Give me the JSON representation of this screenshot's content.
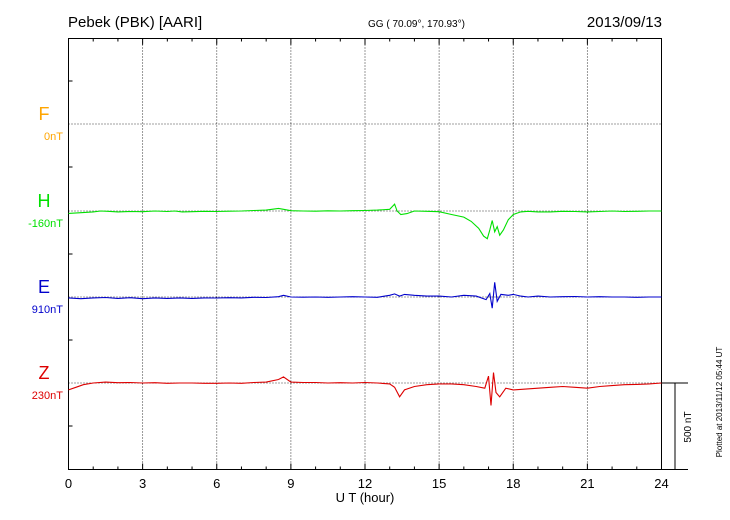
{
  "header": {
    "station": "Pebek (PBK)  [AARI]",
    "coords": "GG ( 70.09°, 170.93°)",
    "date": "2013/09/13"
  },
  "footer": {
    "plotted": "Plotted at 2013/11/12 05:44 UT",
    "scale_label": "500 nT"
  },
  "colors": {
    "F": "#ffa500",
    "H": "#00e000",
    "E": "#0000cc",
    "Z": "#dd0000"
  },
  "chart_data": {
    "type": "line",
    "xlabel": "U T (hour)",
    "xlim": [
      0,
      24
    ],
    "xticks": [
      "0",
      "3",
      "6",
      "9",
      "12",
      "15",
      "18",
      "21",
      "24"
    ],
    "grid": true,
    "scale_bar_nT": 500,
    "series": [
      {
        "name": "F",
        "baseline_label": "0nT",
        "x": [],
        "values": []
      },
      {
        "name": "H",
        "baseline_label": "-160nT",
        "x": [
          0,
          0.5,
          1,
          1.3,
          1.6,
          2,
          2.5,
          3,
          3.5,
          4,
          4.3,
          4.6,
          5,
          5.5,
          6,
          6.5,
          7,
          7.5,
          8,
          8.5,
          8.7,
          9,
          9.5,
          10,
          10.5,
          11,
          11.5,
          12,
          12.5,
          13,
          13.2,
          13.3,
          13.45,
          13.7,
          14,
          14.5,
          15,
          15.5,
          16,
          16.3,
          16.6,
          16.8,
          16.95,
          17.05,
          17.15,
          17.25,
          17.35,
          17.45,
          17.6,
          17.8,
          18,
          18.3,
          18.6,
          19,
          19.5,
          20,
          20.5,
          21,
          21.5,
          22,
          22.5,
          23,
          23.5,
          24
        ],
        "values": [
          -14,
          -10,
          -5,
          0,
          -2,
          -5,
          -3,
          -4,
          0,
          -3,
          0,
          -5,
          -4,
          -2,
          -3,
          -1,
          0,
          3,
          5,
          15,
          10,
          2,
          0,
          -1,
          1,
          0,
          2,
          3,
          5,
          10,
          40,
          0,
          -20,
          -15,
          0,
          -2,
          -4,
          -20,
          -35,
          -60,
          -100,
          -145,
          -160,
          -110,
          -55,
          -120,
          -90,
          -140,
          -110,
          -50,
          -20,
          -5,
          -2,
          -5,
          -5,
          -2,
          -3,
          -5,
          -3,
          0,
          -3,
          -2,
          0,
          0
        ]
      },
      {
        "name": "E",
        "baseline_label": "910nT",
        "x": [
          0,
          0.5,
          1,
          1.5,
          2,
          2.5,
          3,
          3.5,
          4,
          4.5,
          5,
          5.5,
          6,
          6.5,
          7,
          7.5,
          8,
          8.5,
          8.7,
          9,
          9.5,
          10,
          10.5,
          11,
          11.5,
          12,
          12.5,
          13,
          13.2,
          13.4,
          13.6,
          14,
          14.5,
          15,
          15.5,
          16,
          16.5,
          16.9,
          17.05,
          17.15,
          17.25,
          17.35,
          17.5,
          17.8,
          18,
          18.3,
          18.6,
          19,
          19.5,
          20,
          20.5,
          21,
          21.5,
          22,
          22.5,
          23,
          23.5,
          24
        ],
        "values": [
          -5,
          -10,
          -5,
          -3,
          -8,
          -4,
          -10,
          -5,
          -8,
          -5,
          -8,
          -5,
          -6,
          -4,
          -5,
          -2,
          -3,
          2,
          10,
          0,
          -1,
          0,
          -2,
          0,
          2,
          0,
          -2,
          10,
          18,
          5,
          15,
          10,
          5,
          5,
          0,
          10,
          5,
          -15,
          20,
          -65,
          85,
          -25,
          15,
          10,
          15,
          5,
          0,
          5,
          0,
          2,
          3,
          0,
          2,
          0,
          0,
          -2,
          0,
          0
        ]
      },
      {
        "name": "Z",
        "baseline_label": "230nT",
        "x": [
          0,
          0.3,
          0.6,
          1,
          1.5,
          2,
          2.5,
          3,
          3.5,
          4,
          4.5,
          5,
          5.5,
          6,
          6.5,
          7,
          7.5,
          8,
          8.5,
          8.7,
          9,
          9.5,
          10,
          10.5,
          11,
          11.5,
          12,
          12.5,
          13,
          13.2,
          13.4,
          13.6,
          14,
          14.5,
          15,
          15.5,
          16,
          16.5,
          16.85,
          17.0,
          17.1,
          17.2,
          17.3,
          17.45,
          17.7,
          18,
          18.5,
          19,
          19.5,
          20,
          20.5,
          21,
          21.5,
          22,
          22.5,
          23,
          23.5,
          24
        ],
        "values": [
          -40,
          -25,
          -10,
          0,
          5,
          2,
          3,
          0,
          2,
          -2,
          0,
          0,
          -2,
          -2,
          0,
          -2,
          3,
          5,
          20,
          35,
          5,
          3,
          3,
          0,
          2,
          0,
          3,
          0,
          -5,
          -25,
          -80,
          -40,
          -20,
          -10,
          -5,
          -5,
          -10,
          -20,
          -30,
          40,
          -130,
          60,
          -55,
          -80,
          -30,
          -40,
          -35,
          -30,
          -25,
          -20,
          -25,
          -30,
          -20,
          -15,
          -10,
          -8,
          -5,
          0
        ]
      }
    ]
  }
}
